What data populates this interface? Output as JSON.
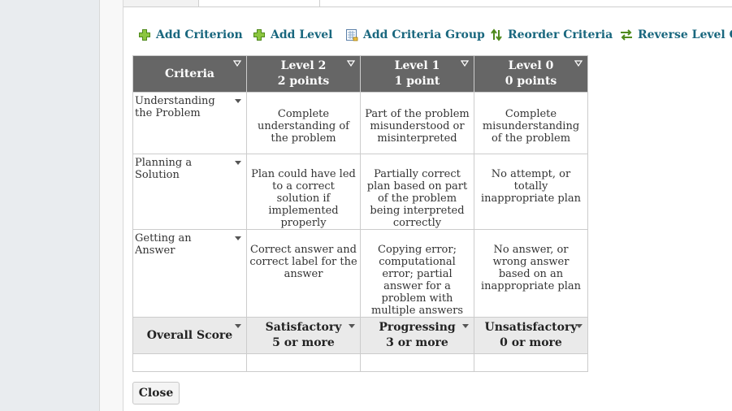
{
  "toolbar": {
    "items": [
      {
        "label": "Add Criterion",
        "icon": "green-plus-icon"
      },
      {
        "label": "Add Level",
        "icon": "green-plus-icon"
      },
      {
        "label": "Add Criteria Group",
        "icon": "document-grid-icon"
      },
      {
        "label": "Reorder Criteria",
        "icon": "up-down-arrows-icon"
      },
      {
        "label": "Reverse Level Order",
        "icon": "swap-arrows-icon"
      }
    ]
  },
  "rubric": {
    "headers": [
      {
        "name": "Criteria",
        "sub": ""
      },
      {
        "name": "Level 2",
        "sub": "2 points"
      },
      {
        "name": "Level 1",
        "sub": "1 point"
      },
      {
        "name": "Level 0",
        "sub": "0 points"
      }
    ],
    "criteria": [
      {
        "name": "Understanding the Problem",
        "cells": [
          "Complete understanding of the problem",
          "Part of the problem misunderstood or misinterpreted",
          "Complete misunderstanding of the problem"
        ]
      },
      {
        "name": "Planning a Solution",
        "cells": [
          "Plan could have led to a correct solution if implemented properly",
          "Partially correct plan based on part of the problem being interpreted correctly",
          "No attempt, or totally inappropriate plan"
        ]
      },
      {
        "name": "Getting an Answer",
        "cells": [
          "Correct answer and correct label for the answer",
          "Copying error; computational error; partial answer for a problem with multiple answers",
          "No answer, or wrong answer based on an inappropriate plan"
        ]
      }
    ],
    "overall": {
      "label": "Overall Score",
      "levels": [
        {
          "name": "Satisfactory",
          "min": "5 or more"
        },
        {
          "name": "Progressing",
          "min": "3 or more"
        },
        {
          "name": "Unsatisfactory",
          "min": "0 or more"
        }
      ]
    }
  },
  "close_label": "Close",
  "colors": {
    "link": "#19677e",
    "header_bg": "#666666",
    "overall_bg": "#eaeaea",
    "icon_green": "#6bb32e"
  }
}
